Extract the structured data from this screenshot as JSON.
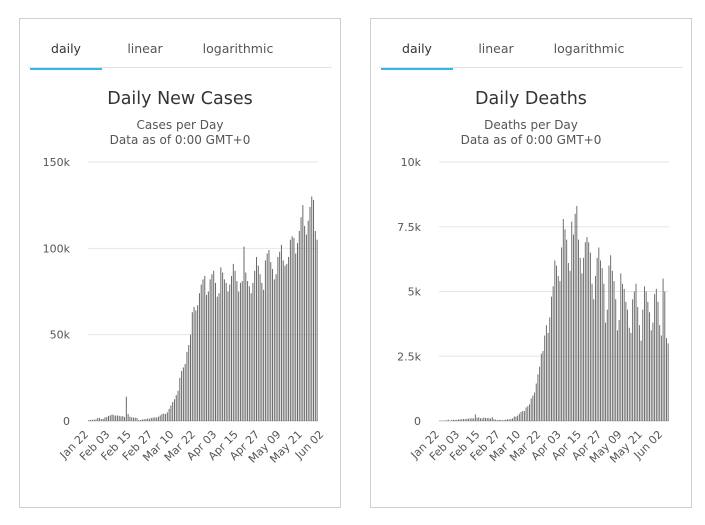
{
  "panels": [
    {
      "tabs": [
        {
          "label": "daily",
          "active": true
        },
        {
          "label": "linear",
          "active": false
        },
        {
          "label": "logarithmic",
          "active": false
        }
      ],
      "chart_data": {
        "type": "bar",
        "title": "Daily New Cases",
        "subtitle": [
          "Cases per Day",
          "Data as of 0:00 GMT+0"
        ],
        "ylim": [
          0,
          150000
        ],
        "yticks": [
          0,
          50000,
          100000,
          150000
        ],
        "ytick_labels": [
          "0",
          "50k",
          "100k",
          "150k"
        ],
        "grid": true,
        "x_start": "Jan 22",
        "xtick_labels": [
          "Jan 22",
          "Feb 03",
          "Feb 15",
          "Feb 27",
          "Mar 10",
          "Mar 22",
          "Apr 03",
          "Apr 15",
          "Apr 27",
          "May 09",
          "May 21",
          "Jun 02"
        ],
        "bar_color": "#666666",
        "values": [
          550,
          650,
          700,
          750,
          1000,
          1700,
          1800,
          1100,
          1200,
          2100,
          2300,
          2900,
          3300,
          3800,
          3400,
          3100,
          3200,
          3000,
          2700,
          2800,
          2300,
          14100,
          4000,
          2500,
          2100,
          2000,
          1900,
          1700,
          500,
          600,
          900,
          1000,
          1200,
          1400,
          1300,
          1800,
          1900,
          2200,
          2000,
          2500,
          3200,
          4000,
          4300,
          4000,
          5000,
          7000,
          9000,
          11000,
          12600,
          15000,
          17500,
          25000,
          29000,
          31000,
          33000,
          40000,
          44000,
          50000,
          63000,
          66000,
          64000,
          67000,
          74000,
          79000,
          82000,
          84000,
          73000,
          75000,
          82000,
          85000,
          87000,
          80000,
          72000,
          74000,
          89000,
          86000,
          82000,
          80000,
          75000,
          79000,
          84000,
          91000,
          87000,
          81000,
          75000,
          80000,
          81000,
          101000,
          86000,
          81000,
          78000,
          74000,
          80000,
          87000,
          95000,
          90000,
          85000,
          80000,
          76000,
          93000,
          97000,
          99000,
          92000,
          88000,
          82000,
          85000,
          95000,
          98000,
          102000,
          93000,
          90000,
          91000,
          95000,
          105000,
          107000,
          106000,
          97000,
          103000,
          110000,
          118000,
          125000,
          113000,
          108000,
          116000,
          124000,
          130000,
          128000,
          110000,
          105000
        ]
      }
    },
    {
      "tabs": [
        {
          "label": "daily",
          "active": true
        },
        {
          "label": "linear",
          "active": false
        },
        {
          "label": "logarithmic",
          "active": false
        }
      ],
      "chart_data": {
        "type": "bar",
        "title": "Daily Deaths",
        "subtitle": [
          "Deaths per Day",
          "Data as of 0:00 GMT+0"
        ],
        "ylim": [
          0,
          10000
        ],
        "yticks": [
          0,
          2500,
          5000,
          7500,
          10000
        ],
        "ytick_labels": [
          "0",
          "2.5k",
          "5k",
          "7.5k",
          "10k"
        ],
        "grid": true,
        "x_start": "Jan 22",
        "xtick_labels": [
          "Jan 22",
          "Feb 03",
          "Feb 15",
          "Feb 27",
          "Mar 10",
          "Mar 22",
          "Apr 03",
          "Apr 15",
          "Apr 27",
          "May 09",
          "May 21",
          "Jun 02"
        ],
        "bar_color": "#666666",
        "values": [
          17,
          8,
          16,
          14,
          26,
          49,
          2,
          38,
          43,
          46,
          45,
          57,
          64,
          66,
          73,
          73,
          86,
          89,
          97,
          108,
          97,
          254,
          121,
          143,
          106,
          98,
          136,
          115,
          118,
          109,
          97,
          150,
          71,
          52,
          29,
          44,
          38,
          31,
          37,
          57,
          64,
          66,
          75,
          100,
          170,
          170,
          210,
          280,
          350,
          390,
          380,
          520,
          570,
          640,
          870,
          980,
          1100,
          1450,
          1800,
          2100,
          2600,
          2700,
          3300,
          3700,
          3400,
          4000,
          4800,
          5200,
          6200,
          6000,
          5600,
          5400,
          6700,
          7800,
          7400,
          7000,
          6100,
          5800,
          7700,
          7200,
          8000,
          8300,
          7000,
          6300,
          5700,
          6300,
          6900,
          7100,
          6900,
          6500,
          5300,
          4700,
          5600,
          6300,
          6700,
          6200,
          5900,
          5300,
          3800,
          4300,
          6000,
          6400,
          5800,
          5400,
          4700,
          3500,
          3900,
          5700,
          5300,
          5100,
          4600,
          4300,
          3600,
          3400,
          4700,
          5000,
          5300,
          4400,
          3700,
          3100,
          4300,
          5200,
          5000,
          4600,
          4200,
          3500,
          3800,
          4900,
          5100,
          4600,
          3700,
          3300,
          5500,
          5000,
          3200,
          3000
        ]
      }
    }
  ]
}
